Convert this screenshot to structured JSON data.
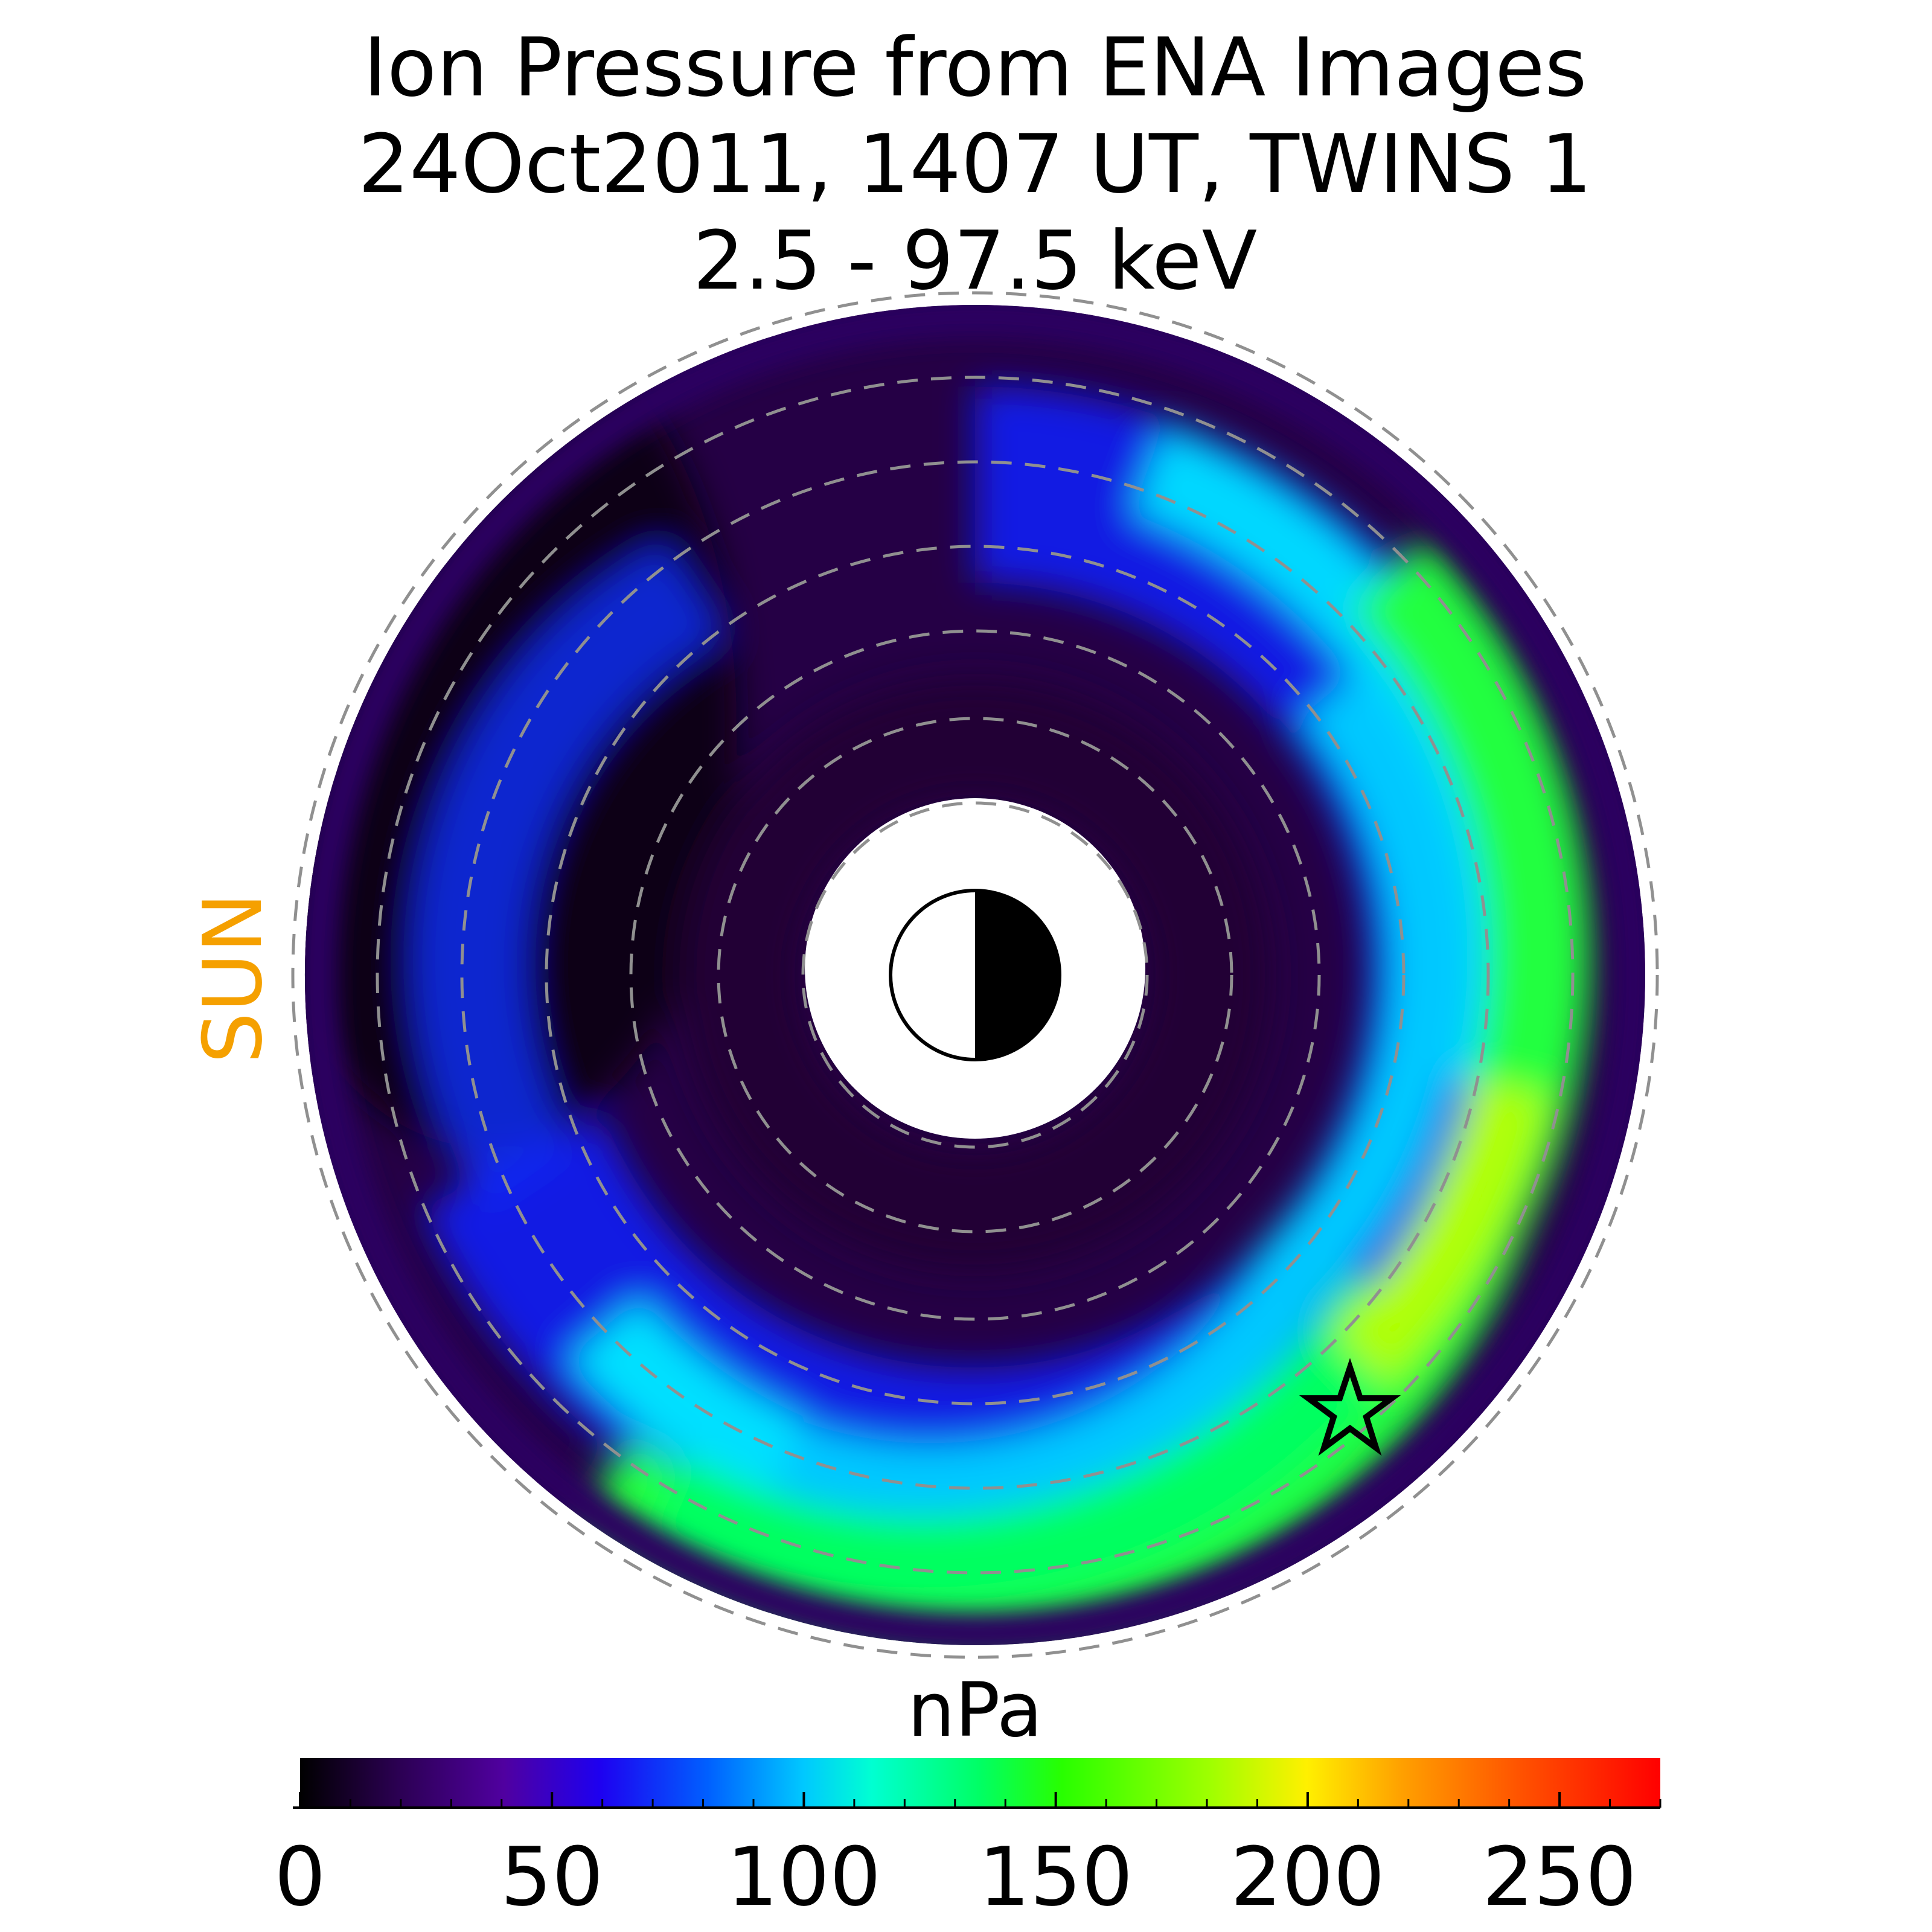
{
  "chart_data": {
    "type": "heatmap",
    "projection": "polar equatorial plane",
    "title": {
      "line1": "Ion Pressure from  ENA Images",
      "line2": "24Oct2011, 1407 UT,  TWINS 1",
      "line3": "2.5 - 97.5 keV"
    },
    "sun_label": "SUN",
    "sun_label_color": "#f5a000",
    "colorbar": {
      "label": "nPa",
      "range": [
        0,
        270
      ],
      "ticks": [
        0,
        50,
        100,
        150,
        200,
        250
      ],
      "tick_labels": [
        "0",
        "50",
        "100",
        "150",
        "200",
        "250"
      ],
      "colormap": [
        "#000000",
        "#2a0050",
        "#5000a0",
        "#1e00f0",
        "#0060ff",
        "#00c8ff",
        "#00ffd2",
        "#00ff64",
        "#28ff00",
        "#a0ff00",
        "#fff000",
        "#ffa000",
        "#ff5000",
        "#ff0000"
      ]
    },
    "radial_grid_circles": 7,
    "grid_style": "dashed gray",
    "annotations": [
      "earth-symbol (half day/half night)",
      "star marker"
    ],
    "pressure_features": [
      {
        "region": "inner ring",
        "value_approx": 20
      },
      {
        "region": "noon sector outer",
        "value_approx": 10
      },
      {
        "region": "dusk-midnight band",
        "value_approx": 160
      },
      {
        "region": "midnight-dawn band",
        "value_approx": 150
      }
    ]
  }
}
